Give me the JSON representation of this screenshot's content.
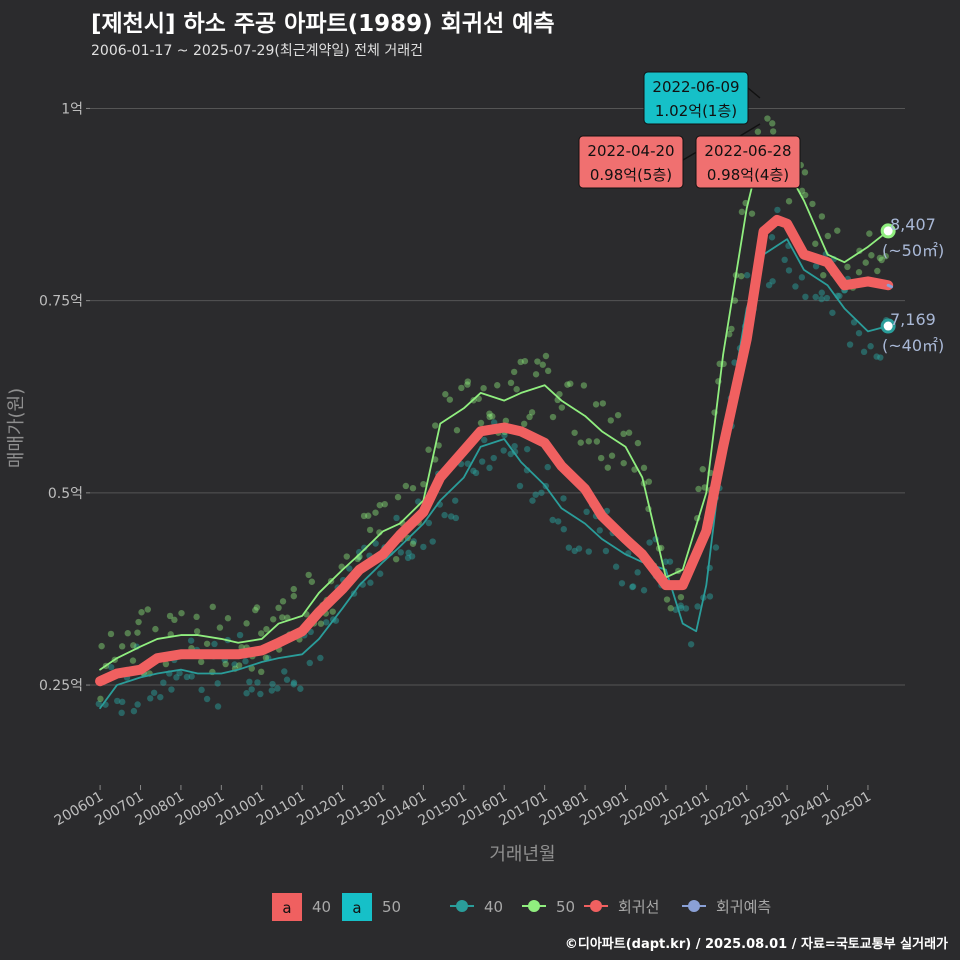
{
  "header": {
    "title": "[제천시] 하소 주공 아파트(1989) 회귀선 예측",
    "subtitle": "2006-01-17 ~ 2025-07-29(최근계약일) 전체 거래건"
  },
  "credit": "©디아파트(dapt.kr) / 2025.08.01 / 자료=국토교통부 실거래가",
  "colors": {
    "background": "#2b2b2d",
    "s40": "#2a9d9a",
    "s50": "#90ee7f",
    "regression": "#f06060",
    "forecast": "#8aa0d6",
    "grid": "#555555",
    "ann_red": "#f07070",
    "ann_teal": "#16c0c8"
  },
  "chart_data": {
    "type": "line",
    "xlabel": "거래년월",
    "ylabel": "매매가(원)",
    "x_range": [
      "2005-10",
      "2025-12"
    ],
    "ylim": [
      0.12,
      1.05
    ],
    "x_ticks": [
      "200601",
      "200701",
      "200801",
      "200901",
      "201001",
      "201101",
      "201201",
      "201301",
      "201401",
      "201501",
      "201601",
      "201701",
      "201801",
      "201901",
      "202001",
      "202101",
      "202201",
      "202301",
      "202401",
      "202501"
    ],
    "y_ticks": [
      {
        "value": 0.25,
        "label": "0.25억"
      },
      {
        "value": 0.5,
        "label": "0.5억"
      },
      {
        "value": 0.75,
        "label": "0.75억"
      },
      {
        "value": 1.0,
        "label": "1억"
      }
    ],
    "grid": true,
    "legend": {
      "position": "bottom",
      "label_keys": [
        {
          "text": "a",
          "label": "40"
        },
        {
          "text": "a",
          "label": "50"
        }
      ],
      "series_keys": [
        {
          "label": "40",
          "series": "40"
        },
        {
          "label": "50",
          "series": "50"
        },
        {
          "label": "회귀선",
          "series": "regression"
        },
        {
          "label": "회귀예측",
          "series": "forecast"
        }
      ]
    },
    "series": [
      {
        "name": "40",
        "x": [
          "2006-01",
          "2006-06",
          "2007-01",
          "2007-06",
          "2008-01",
          "2008-06",
          "2009-01",
          "2009-06",
          "2010-01",
          "2010-06",
          "2011-01",
          "2011-06",
          "2012-01",
          "2012-06",
          "2013-01",
          "2013-06",
          "2014-01",
          "2014-06",
          "2015-01",
          "2015-06",
          "2016-01",
          "2016-06",
          "2017-01",
          "2017-06",
          "2018-01",
          "2018-06",
          "2019-01",
          "2019-06",
          "2020-01",
          "2020-06",
          "2020-10",
          "2021-01",
          "2021-06",
          "2022-01",
          "2022-06",
          "2023-01",
          "2023-06",
          "2024-01",
          "2024-06",
          "2025-01",
          "2025-07"
        ],
        "values": [
          0.22,
          0.25,
          0.26,
          0.265,
          0.27,
          0.265,
          0.265,
          0.27,
          0.28,
          0.285,
          0.29,
          0.31,
          0.35,
          0.38,
          0.41,
          0.43,
          0.46,
          0.49,
          0.52,
          0.56,
          0.57,
          0.54,
          0.51,
          0.48,
          0.46,
          0.44,
          0.42,
          0.41,
          0.4,
          0.33,
          0.32,
          0.38,
          0.56,
          0.74,
          0.81,
          0.83,
          0.79,
          0.77,
          0.74,
          0.71,
          0.717
        ]
      },
      {
        "name": "50",
        "x": [
          "2006-01",
          "2006-06",
          "2007-01",
          "2007-06",
          "2008-01",
          "2008-06",
          "2009-01",
          "2009-06",
          "2010-01",
          "2010-06",
          "2011-01",
          "2011-06",
          "2012-01",
          "2012-06",
          "2013-01",
          "2013-06",
          "2014-01",
          "2014-06",
          "2015-01",
          "2015-06",
          "2016-01",
          "2016-06",
          "2017-01",
          "2017-06",
          "2018-01",
          "2018-06",
          "2019-01",
          "2019-06",
          "2020-01",
          "2020-06",
          "2021-01",
          "2021-06",
          "2022-01",
          "2022-06",
          "2023-01",
          "2023-06",
          "2024-01",
          "2024-06",
          "2025-01",
          "2025-07"
        ],
        "values": [
          0.27,
          0.285,
          0.3,
          0.31,
          0.315,
          0.315,
          0.31,
          0.305,
          0.31,
          0.33,
          0.34,
          0.37,
          0.4,
          0.42,
          0.45,
          0.46,
          0.49,
          0.59,
          0.61,
          0.63,
          0.62,
          0.63,
          0.64,
          0.62,
          0.6,
          0.58,
          0.56,
          0.52,
          0.39,
          0.4,
          0.5,
          0.68,
          0.87,
          0.96,
          0.92,
          0.88,
          0.81,
          0.8,
          0.82,
          0.8407
        ]
      },
      {
        "name": "regression",
        "x": [
          "2006-01",
          "2006-06",
          "2007-01",
          "2007-06",
          "2008-01",
          "2008-06",
          "2009-01",
          "2009-06",
          "2010-01",
          "2010-06",
          "2011-01",
          "2011-06",
          "2012-01",
          "2012-06",
          "2013-01",
          "2013-06",
          "2014-01",
          "2014-06",
          "2015-01",
          "2015-06",
          "2016-01",
          "2016-06",
          "2017-01",
          "2017-06",
          "2018-01",
          "2018-06",
          "2019-01",
          "2019-06",
          "2020-01",
          "2020-06",
          "2021-01",
          "2021-06",
          "2022-01",
          "2022-06",
          "2022-10",
          "2023-01",
          "2023-06",
          "2024-01",
          "2024-06",
          "2025-01",
          "2025-07"
        ],
        "values": [
          0.255,
          0.265,
          0.27,
          0.285,
          0.29,
          0.29,
          0.29,
          0.29,
          0.295,
          0.305,
          0.32,
          0.345,
          0.375,
          0.4,
          0.42,
          0.445,
          0.475,
          0.52,
          0.555,
          0.58,
          0.585,
          0.58,
          0.565,
          0.535,
          0.505,
          0.47,
          0.44,
          0.42,
          0.38,
          0.38,
          0.45,
          0.56,
          0.7,
          0.84,
          0.855,
          0.85,
          0.81,
          0.8,
          0.77,
          0.775,
          0.77
        ]
      },
      {
        "name": "forecast",
        "x": [
          "2025-07",
          "2025-08"
        ],
        "values": [
          0.77,
          0.768
        ]
      }
    ],
    "annotations": [
      {
        "date": "2022-06-09",
        "price": "1.02억(1층)",
        "color": "teal"
      },
      {
        "date": "2022-04-20",
        "price": "0.98억(5층)",
        "color": "red"
      },
      {
        "date": "2022-06-28",
        "price": "0.98억(4층)",
        "color": "red"
      }
    ],
    "end_labels": [
      {
        "series": "50",
        "value": "8,407",
        "area": "(~50㎡)"
      },
      {
        "series": "40",
        "value": "7,169",
        "area": "(~40㎡)"
      }
    ]
  }
}
